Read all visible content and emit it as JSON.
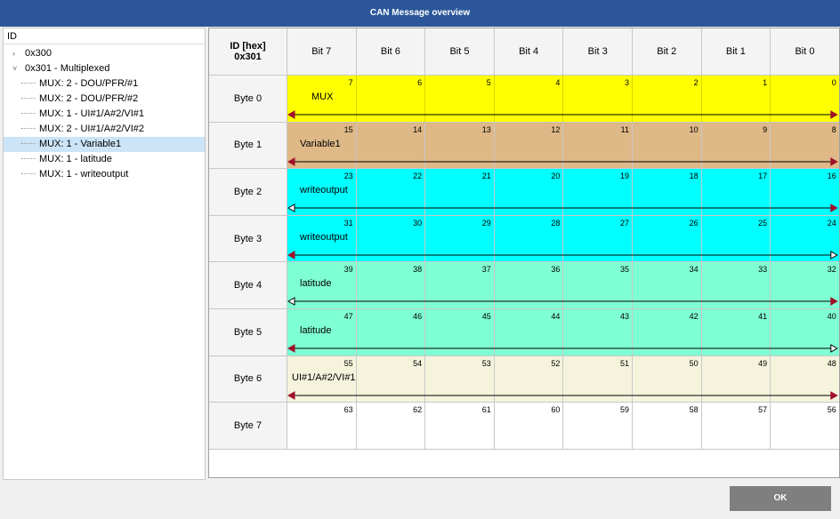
{
  "window": {
    "title": "CAN Message overview"
  },
  "tree": {
    "header": "ID",
    "items": [
      {
        "label": "0x300"
      },
      {
        "label": "0x301 - Multiplexed",
        "children": [
          {
            "label": "MUX: 2 - DOU/PFR/#1"
          },
          {
            "label": "MUX: 2 - DOU/PFR/#2"
          },
          {
            "label": "MUX: 1 - UI#1/A#2/VI#1"
          },
          {
            "label": "MUX: 2 - UI#1/A#2/VI#2"
          },
          {
            "label": "MUX: 1 - Variable1",
            "selected": true
          },
          {
            "label": "MUX: 1 - latitude"
          },
          {
            "label": "MUX: 1 - writeoutput"
          }
        ]
      }
    ]
  },
  "grid": {
    "corner": [
      "ID [hex]",
      "0x301"
    ],
    "columns": [
      "Bit 7",
      "Bit 6",
      "Bit 5",
      "Bit 4",
      "Bit 3",
      "Bit 2",
      "Bit 1",
      "Bit 0"
    ],
    "rows": [
      {
        "label": "Byte 0",
        "bits": [
          7,
          6,
          5,
          4,
          3,
          2,
          1,
          0
        ],
        "signal": "MUX",
        "color": "#ffff00"
      },
      {
        "label": "Byte 1",
        "bits": [
          15,
          14,
          13,
          12,
          11,
          10,
          9,
          8
        ],
        "signal": "Variable1",
        "color": "#deb887"
      },
      {
        "label": "Byte 2",
        "bits": [
          23,
          22,
          21,
          20,
          19,
          18,
          17,
          16
        ],
        "signal": "writeoutput",
        "color": "#00ffff"
      },
      {
        "label": "Byte 3",
        "bits": [
          31,
          30,
          29,
          28,
          27,
          26,
          25,
          24
        ],
        "signal": "writeoutput",
        "color": "#00ffff"
      },
      {
        "label": "Byte 4",
        "bits": [
          39,
          38,
          37,
          36,
          35,
          34,
          33,
          32
        ],
        "signal": "latitude",
        "color": "#7fffd4"
      },
      {
        "label": "Byte 5",
        "bits": [
          47,
          46,
          45,
          44,
          43,
          42,
          41,
          40
        ],
        "signal": "latitude",
        "color": "#7fffd4"
      },
      {
        "label": "Byte 6",
        "bits": [
          55,
          54,
          53,
          52,
          51,
          50,
          49,
          48
        ],
        "signal": "UI#1/A#2/VI#1",
        "color": "#f5f3dc"
      },
      {
        "label": "Byte 7",
        "bits": [
          63,
          62,
          61,
          60,
          59,
          58,
          57,
          56
        ],
        "color": "#ffffff"
      }
    ]
  },
  "button": "OK"
}
